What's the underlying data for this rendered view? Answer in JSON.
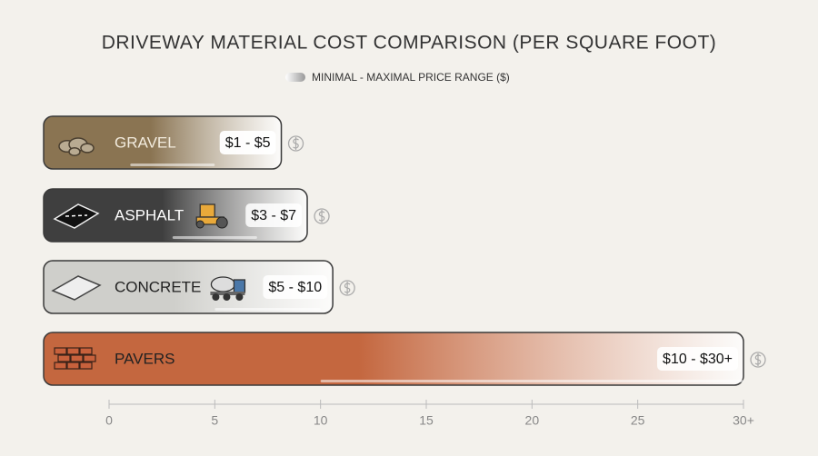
{
  "chart_data": {
    "type": "range_bar",
    "title": "DRIVEWAY MATERIAL COST COMPARISON (PER SQUARE FOOT)",
    "legend": "MINIMAL - MAXIMAL PRICE RANGE ($)",
    "categories": [
      "GRAVEL",
      "ASPHALT",
      "CONCRETE",
      "PAVERS"
    ],
    "min": [
      1,
      3,
      5,
      10
    ],
    "max": [
      5,
      7,
      10,
      30
    ],
    "value_labels": [
      "$1 - $5",
      "$3 - $7",
      "$5 - $10",
      "$10 - $30+"
    ],
    "colors": [
      "#8a7452",
      "#3f3f3f",
      "#cfcfcb",
      "#c4673f"
    ],
    "xlim": [
      0,
      30
    ],
    "xticks": [
      0,
      5,
      10,
      15,
      20,
      25,
      {
        "value": 30,
        "label": "30+"
      }
    ]
  }
}
